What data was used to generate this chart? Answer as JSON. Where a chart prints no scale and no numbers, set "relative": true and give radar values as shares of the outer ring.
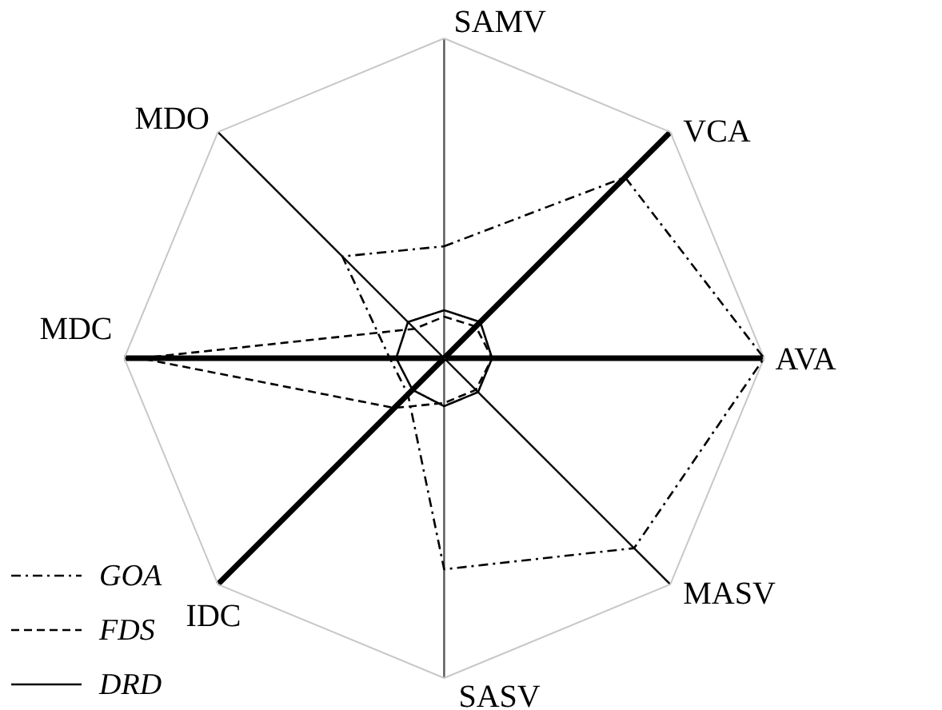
{
  "chart_data": {
    "type": "radar",
    "relative": true,
    "categories": [
      "SAMV",
      "VCA",
      "AVA",
      "MASV",
      "SASV",
      "IDC",
      "MDC",
      "MDO"
    ],
    "series": [
      {
        "name": "GOA",
        "color": "#000000",
        "line_style": "dashdot",
        "values": [
          0.35,
          0.8,
          1,
          0.84,
          0.66,
          0.16,
          0.17,
          0.45
        ]
      },
      {
        "name": "FDS",
        "color": "#000000",
        "line_style": "dashed",
        "values": [
          0.13,
          0.14,
          0.15,
          0.14,
          0.14,
          0.22,
          0.95,
          0.13
        ]
      },
      {
        "name": "DRD",
        "color": "#000000",
        "line_style": "solid",
        "values": [
          0.15,
          0.16,
          0.15,
          0.15,
          0.15,
          0.14,
          0.15,
          0.16
        ]
      }
    ],
    "grid": true,
    "legend": "bottom left"
  }
}
